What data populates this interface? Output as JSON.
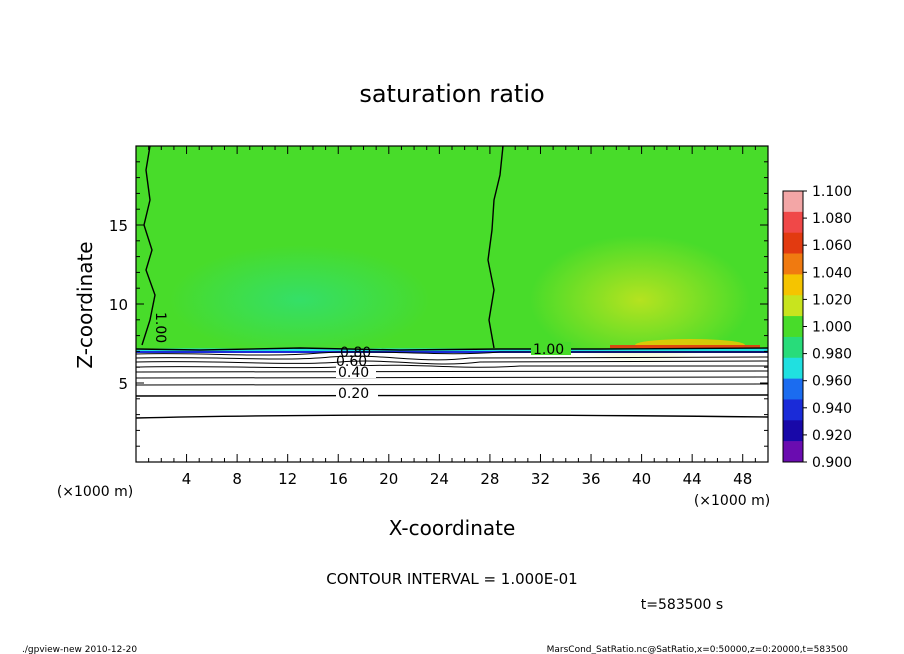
{
  "chart_data": {
    "type": "heatmap",
    "title": "saturation ratio",
    "xlabel": "X-coordinate",
    "ylabel": "Z-coordinate",
    "x_unit": "(×1000 m)",
    "y_unit": "(×1000 m)",
    "xlim": [
      0,
      50
    ],
    "ylim": [
      0,
      20
    ],
    "x_ticks": [
      "4",
      "8",
      "12",
      "16",
      "20",
      "24",
      "28",
      "32",
      "36",
      "40",
      "44",
      "48"
    ],
    "y_ticks": [
      "5",
      "10",
      "15"
    ],
    "colorbar": {
      "labels": [
        "1.100",
        "1.080",
        "1.060",
        "1.040",
        "1.020",
        "1.000",
        "0.980",
        "0.960",
        "0.940",
        "0.920",
        "0.900"
      ],
      "colors": [
        "#f3a6a6",
        "#f04848",
        "#e23a10",
        "#f07a10",
        "#f5c400",
        "#c8e41e",
        "#48dc2a",
        "#28dc7a",
        "#20e0e0",
        "#1b6cf0",
        "#1a2bd8",
        "#1808a8",
        "#6a0cb0"
      ]
    },
    "contour_labels": [
      "1.00",
      "1.00",
      "1.00",
      "0.80",
      "0.60",
      "0.40",
      "0.20"
    ],
    "contour_interval_text": "CONTOUR INTERVAL = 1.000E-01",
    "time_text": "t=583500 s"
  },
  "footer": {
    "left": "./gpview-new  2010-12-20",
    "right": "MarsCond_SatRatio.nc@SatRatio,x=0:50000,z=0:20000,t=583500"
  }
}
